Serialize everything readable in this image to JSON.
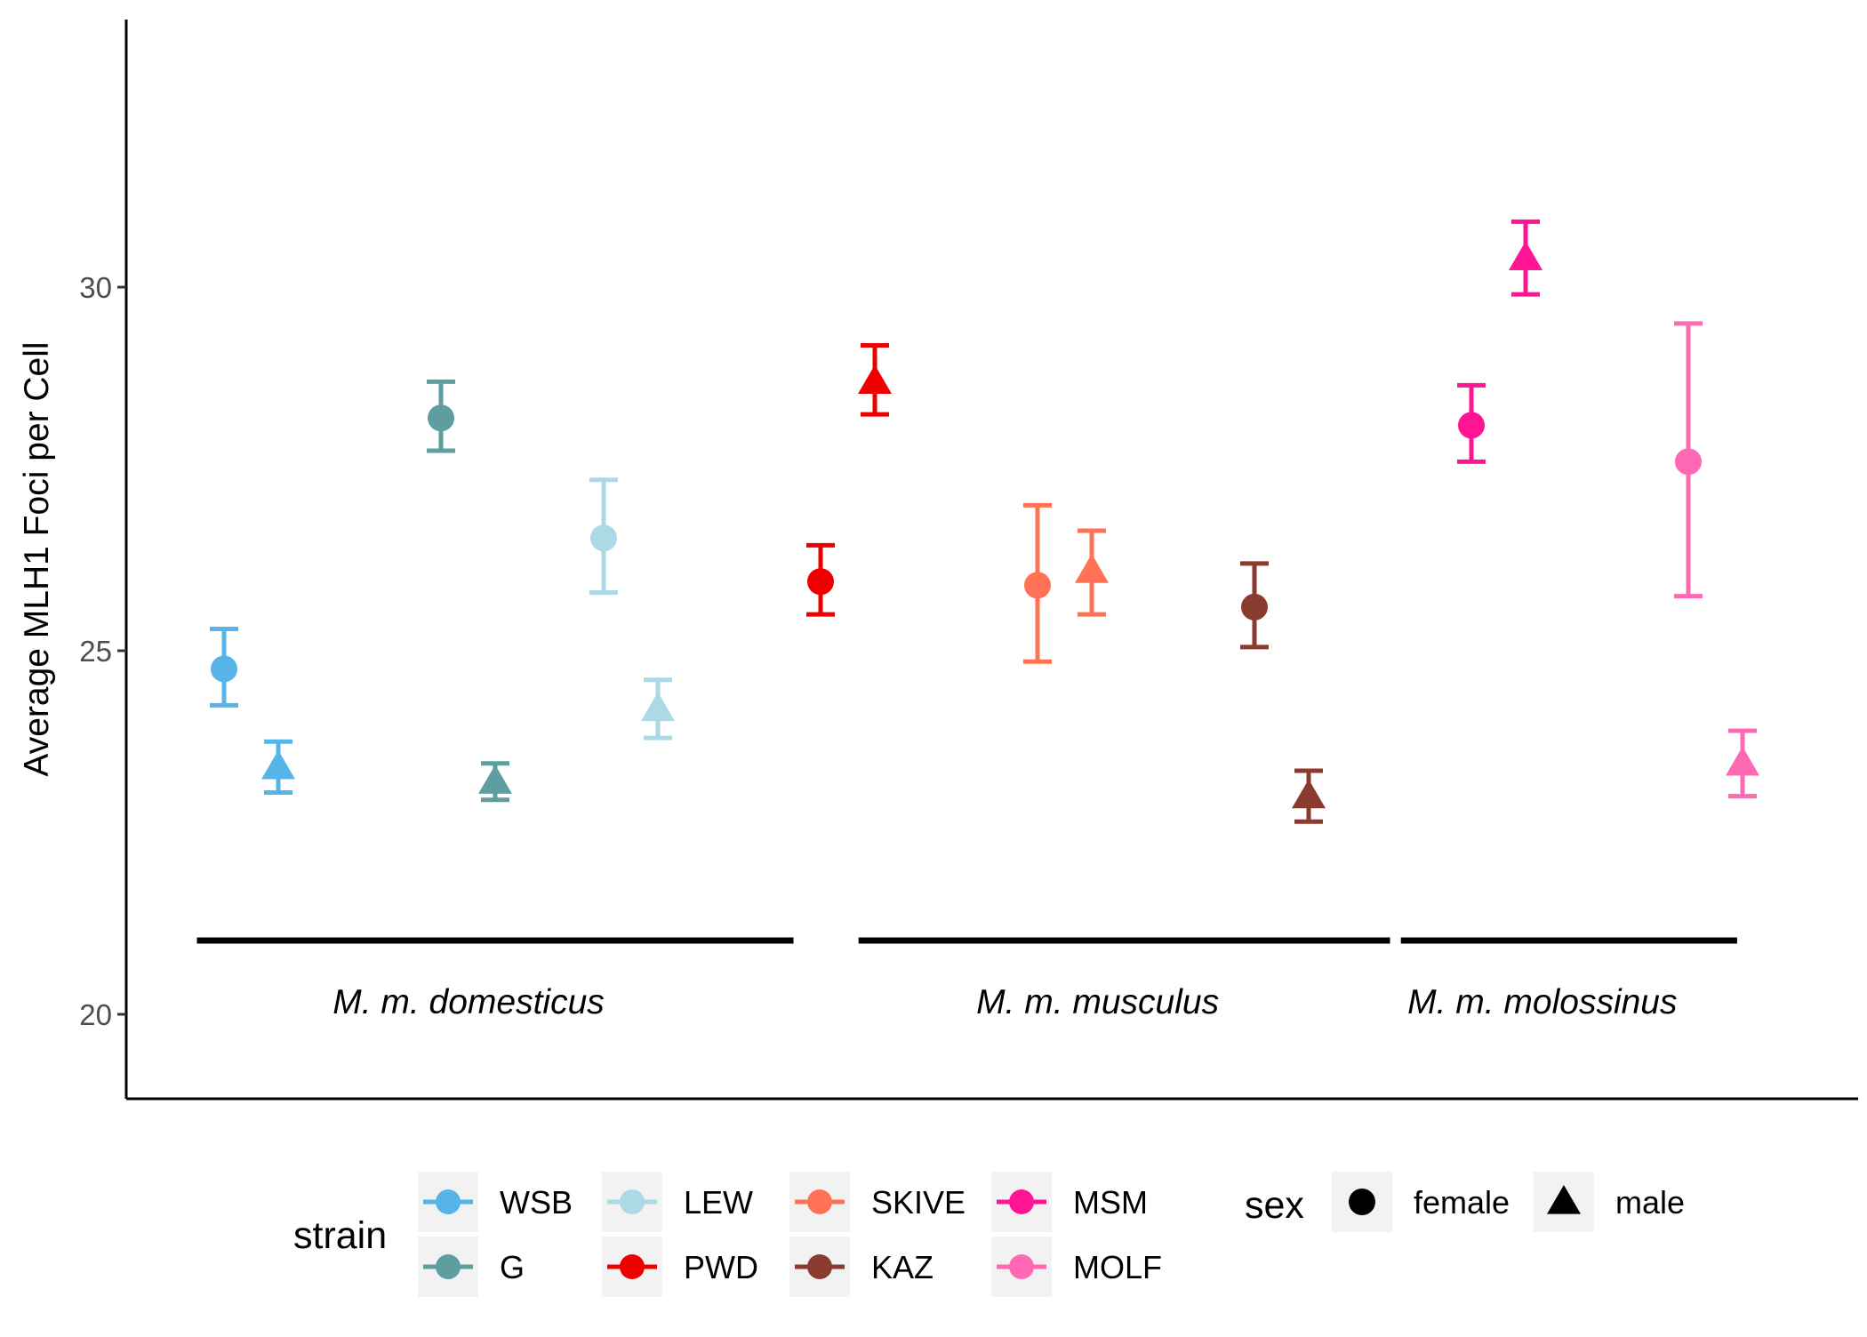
{
  "chart_data": {
    "type": "scatter",
    "title": "",
    "xlabel": "",
    "ylabel": "Average MLH1 Foci per Cell",
    "ylim": [
      18.9,
      33.7
    ],
    "yticks": [
      20,
      25,
      30
    ],
    "grid": false,
    "legend_position": "bottom",
    "groups": [
      {
        "label": "M. m. domesticus",
        "span": [
          0.5,
          11.5
        ]
      },
      {
        "label": "M. m. musculus",
        "span": [
          12.7,
          22.5
        ]
      },
      {
        "label": "M. m. molossinus",
        "span": [
          22.7,
          28.9
        ]
      }
    ],
    "points": [
      {
        "strain": "WSB",
        "sex": "female",
        "x": 1.0,
        "mean": 24.75,
        "lower": 24.25,
        "upper": 25.3
      },
      {
        "strain": "WSB",
        "sex": "male",
        "x": 2.0,
        "mean": 23.4,
        "lower": 23.05,
        "upper": 23.75
      },
      {
        "strain": "G",
        "sex": "female",
        "x": 5.0,
        "mean": 28.2,
        "lower": 27.75,
        "upper": 28.7
      },
      {
        "strain": "G",
        "sex": "male",
        "x": 6.0,
        "mean": 23.2,
        "lower": 22.95,
        "upper": 23.45
      },
      {
        "strain": "LEW",
        "sex": "female",
        "x": 8.0,
        "mean": 26.55,
        "lower": 25.8,
        "upper": 27.35
      },
      {
        "strain": "LEW",
        "sex": "male",
        "x": 9.0,
        "mean": 24.2,
        "lower": 23.8,
        "upper": 24.6
      },
      {
        "strain": "PWD",
        "sex": "female",
        "x": 12.0,
        "mean": 25.95,
        "lower": 25.5,
        "upper": 26.45
      },
      {
        "strain": "PWD",
        "sex": "male",
        "x": 13.0,
        "mean": 28.7,
        "lower": 28.25,
        "upper": 29.2
      },
      {
        "strain": "SKIVE",
        "sex": "female",
        "x": 16.0,
        "mean": 25.9,
        "lower": 24.85,
        "upper": 27.0
      },
      {
        "strain": "SKIVE",
        "sex": "male",
        "x": 17.0,
        "mean": 26.1,
        "lower": 25.5,
        "upper": 26.65
      },
      {
        "strain": "KAZ",
        "sex": "female",
        "x": 20.0,
        "mean": 25.6,
        "lower": 25.05,
        "upper": 26.2
      },
      {
        "strain": "KAZ",
        "sex": "male",
        "x": 21.0,
        "mean": 23.0,
        "lower": 22.65,
        "upper": 23.35
      },
      {
        "strain": "MSM",
        "sex": "female",
        "x": 24.0,
        "mean": 28.1,
        "lower": 27.6,
        "upper": 28.65
      },
      {
        "strain": "MSM",
        "sex": "male",
        "x": 25.0,
        "mean": 30.4,
        "lower": 29.9,
        "upper": 30.9
      },
      {
        "strain": "MOLF",
        "sex": "female",
        "x": 28.0,
        "mean": 27.6,
        "lower": 25.75,
        "upper": 29.5
      },
      {
        "strain": "MOLF",
        "sex": "male",
        "x": 29.0,
        "mean": 23.45,
        "lower": 23.0,
        "upper": 23.9
      }
    ],
    "legend": {
      "strain_title": "strain",
      "strains": [
        {
          "name": "WSB",
          "color": "#56B4E9"
        },
        {
          "name": "G",
          "color": "#5F9EA0"
        },
        {
          "name": "LEW",
          "color": "#ADD8E6"
        },
        {
          "name": "PWD",
          "color": "#EE0000"
        },
        {
          "name": "SKIVE",
          "color": "#FF7256"
        },
        {
          "name": "KAZ",
          "color": "#8B3A2F"
        },
        {
          "name": "MSM",
          "color": "#FF1493"
        },
        {
          "name": "MOLF",
          "color": "#FF69B4"
        }
      ],
      "sex_title": "sex",
      "sexes": [
        {
          "name": "female",
          "shape": "circle"
        },
        {
          "name": "male",
          "shape": "triangle"
        }
      ]
    }
  }
}
